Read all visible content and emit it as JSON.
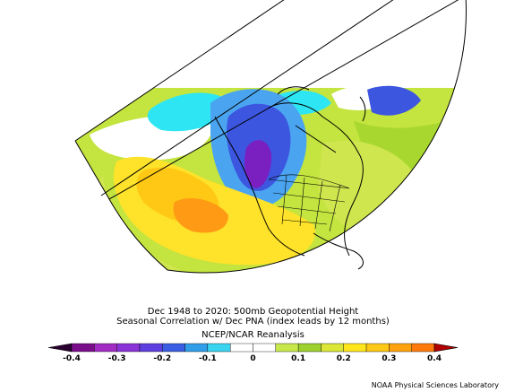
{
  "titles": {
    "line1": "Dec 1948 to 2020: 500mb Geopotential Height",
    "line2": "Seasonal Correlation w/ Dec PNA (index leads by 12 months)",
    "line3": "NCEP/NCAR Reanalysis"
  },
  "credit": "NOAA Physical Sciences Laboratory",
  "colorbar": {
    "min": -0.4,
    "max": 0.4,
    "tick_labels": [
      "-0.4",
      "-0.3",
      "-0.2",
      "-0.1",
      "0",
      "0.1",
      "0.2",
      "0.3",
      "0.4"
    ],
    "bin_colors": [
      "#7a0d8a",
      "#a12cc4",
      "#8a33d6",
      "#5d3ede",
      "#3a5de3",
      "#2f9de7",
      "#39d4f0",
      "#ffffff",
      "#ffffff",
      "#c7e84a",
      "#9ed12e",
      "#dbe636",
      "#ffe61c",
      "#ffc814",
      "#ffa20e",
      "#ff7a0a"
    ],
    "low_end_color": "#2a0030",
    "high_end_color": "#b00000"
  },
  "map_colors": {
    "strong_negative": "#7a1fc0",
    "negative": "#3d56e0",
    "weak_negative": "#4aa4f0",
    "light_negative": "#2ee6f3",
    "neutral": "#ffffff",
    "weak_positive": "#a8d82f",
    "light_positive": "#cfe64f",
    "positive": "#ffe22a",
    "strong_positive": "#ff9a14"
  }
}
